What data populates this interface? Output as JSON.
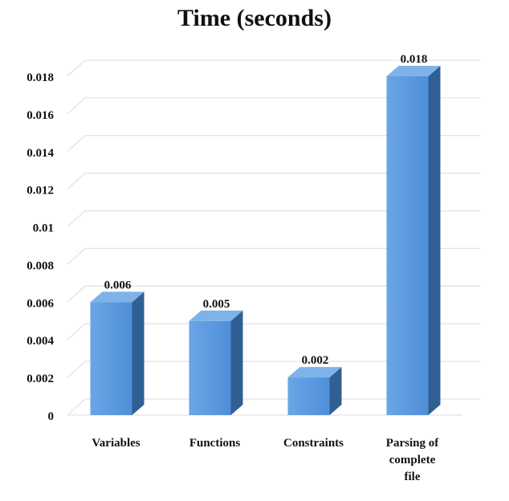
{
  "chart_data": {
    "type": "bar",
    "title": "Time (seconds)",
    "categories": [
      "Variables",
      "Functions",
      "Constraints",
      "Parsing of complete file"
    ],
    "category_lines": [
      [
        "Variables"
      ],
      [
        "Functions"
      ],
      [
        "Constraints"
      ],
      [
        "Parsing of",
        "complete",
        "file"
      ]
    ],
    "values": [
      0.006,
      0.005,
      0.002,
      0.018
    ],
    "value_labels": [
      "0.006",
      "0.005",
      "0.002",
      "0.018"
    ],
    "yticks": [
      "0",
      "0.002",
      "0.004",
      "0.006",
      "0.008",
      "0.01",
      "0.012",
      "0.014",
      "0.016",
      "0.018"
    ],
    "ylim": [
      0,
      0.018
    ],
    "grid": true,
    "legend": "none",
    "colors": {
      "bar_front": "#4f8fd8",
      "bar_front_light": "#6aa6e6",
      "bar_side": "#2f5f93",
      "bar_top": "#7eb3ea",
      "grid": "#e3e3e3"
    }
  }
}
